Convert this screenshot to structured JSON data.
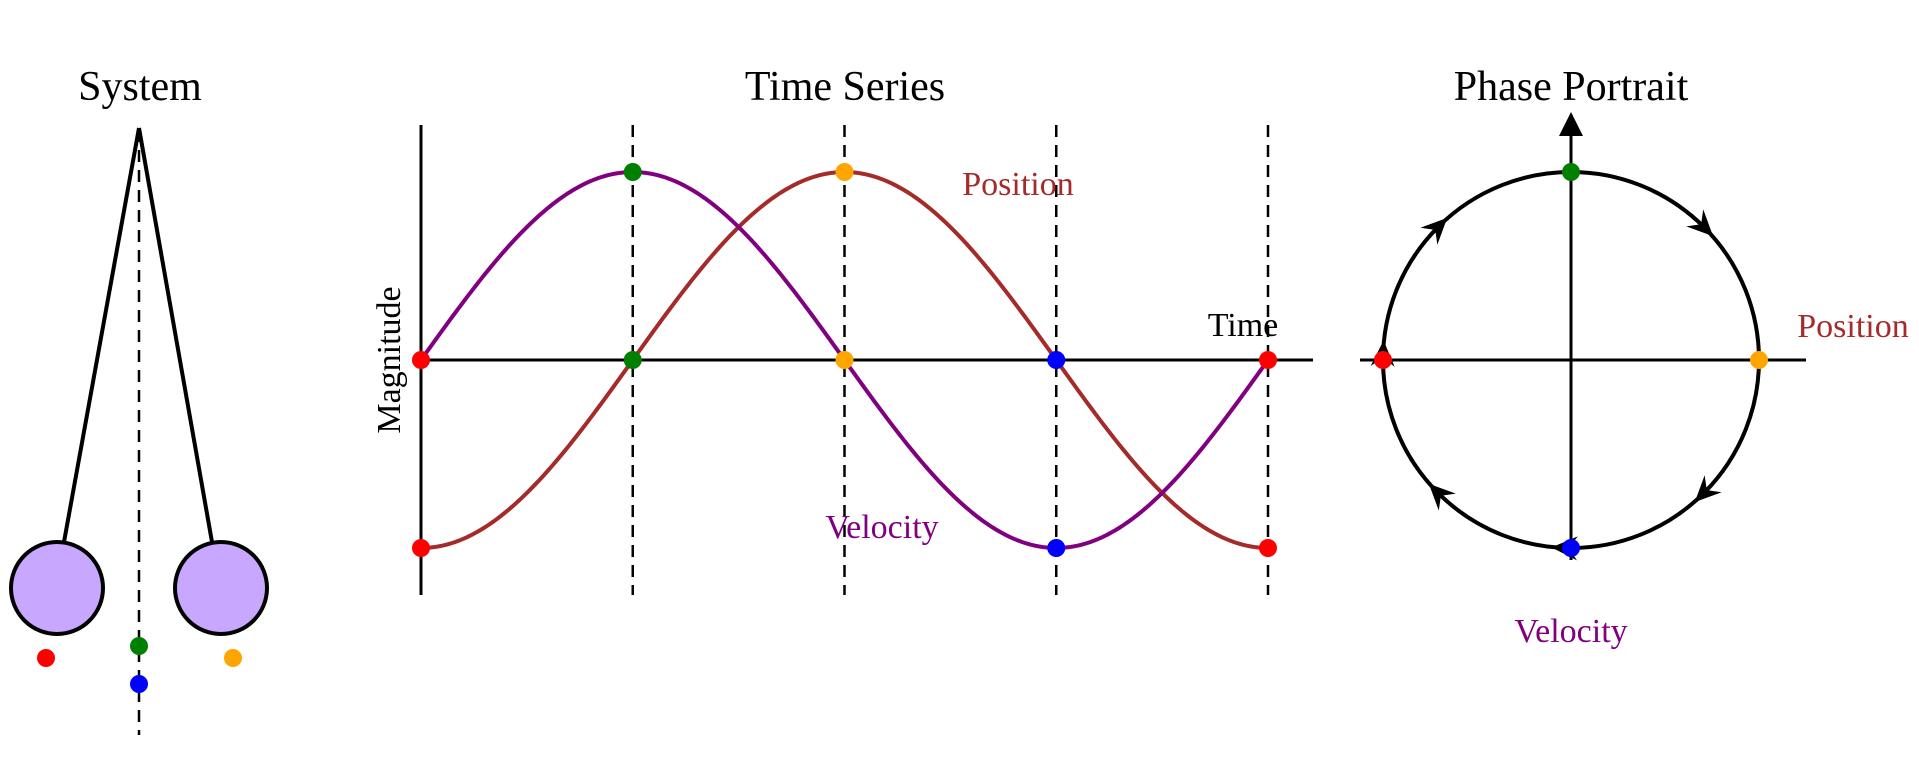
{
  "colors": {
    "position": "#a52a2a",
    "velocity": "#800080",
    "bob_fill": "#c8a8ff",
    "axis": "#000000",
    "red": "#ff0000",
    "green": "#008000",
    "orange": "#ffa500",
    "blue": "#0000ff"
  },
  "system": {
    "title": "System"
  },
  "time_series": {
    "title": "Time Series",
    "ylabel": "Magnitude",
    "xlabel": "Time",
    "position_label": "Position",
    "velocity_label": "Velocity"
  },
  "phase": {
    "title": "Phase Portrait",
    "x_label": "Position",
    "y_label": "Velocity"
  },
  "chart_data": {
    "type": "line",
    "x": [
      0,
      0.125,
      0.25,
      0.375,
      0.5,
      0.625,
      0.75,
      0.875,
      1
    ],
    "series": [
      {
        "name": "Position",
        "values": [
          -1,
          -0.707,
          0,
          0.707,
          1,
          0.707,
          0,
          -0.707,
          -1
        ]
      },
      {
        "name": "Velocity",
        "values": [
          0,
          0.707,
          1,
          0.707,
          0,
          -0.707,
          -1,
          -0.707,
          0
        ]
      }
    ],
    "key_points": [
      {
        "t": 0,
        "color": "red"
      },
      {
        "t": 0.25,
        "color": "green"
      },
      {
        "t": 0.5,
        "color": "orange"
      },
      {
        "t": 0.75,
        "color": "blue"
      },
      {
        "t": 1,
        "color": "red"
      }
    ]
  }
}
